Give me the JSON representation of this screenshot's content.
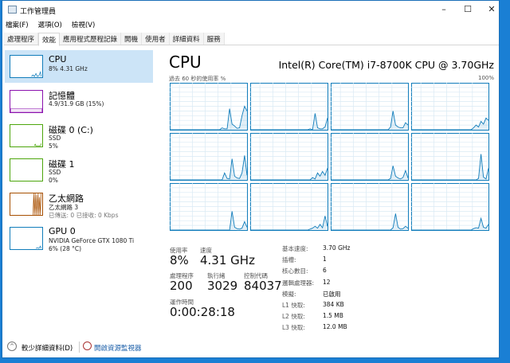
{
  "window": {
    "title": "工作管理員",
    "minimize": "–",
    "maximize": "☐",
    "close": "✕"
  },
  "menu": [
    "檔案(F)",
    "選項(O)",
    "檢視(V)"
  ],
  "tabs": [
    "處理程序",
    "效能",
    "應用程式歷程記錄",
    "開機",
    "使用者",
    "詳細資料",
    "服務"
  ],
  "active_tab": 1,
  "sidebar": [
    {
      "name": "CPU",
      "sub1": "8% 4.31 GHz",
      "color": "#117dbb"
    },
    {
      "name": "記憶體",
      "sub1": "4.9/31.9 GB (15%)",
      "color": "#8b12ae"
    },
    {
      "name": "磁碟 0 (C:)",
      "sub1": "SSD",
      "sub2": "5%",
      "color": "#4da60c"
    },
    {
      "name": "磁碟 1",
      "sub1": "SSD",
      "sub2": "0%",
      "color": "#4da60c"
    },
    {
      "name": "乙太網路",
      "sub1": "乙太網路 3",
      "sub2": "已傳送: 0 已接收: 0 Kbps",
      "color": "#a74f01"
    },
    {
      "name": "GPU 0",
      "sub1": "NVIDIA GeForce GTX 1080 Ti",
      "sub2": "6% (28 °C)",
      "color": "#117dbb"
    }
  ],
  "main": {
    "title": "CPU",
    "model": "Intel(R) Core(TM) i7-8700K CPU @ 3.70GHz",
    "graph_label": "過去 60 秒的使用率 %",
    "graph_max": "100%",
    "stats": {
      "usage_label": "使用率",
      "usage": "8%",
      "speed_label": "速度",
      "speed": "4.31 GHz",
      "proc_label": "處理程序",
      "proc": "200",
      "threads_label": "執行緒",
      "threads": "3029",
      "handles_label": "控制代碼",
      "handles": "84037",
      "uptime_label": "運作時間",
      "uptime": "0:00:28:18"
    },
    "specs": [
      {
        "k": "基本速度:",
        "v": "3.70 GHz"
      },
      {
        "k": "插槽:",
        "v": "1"
      },
      {
        "k": "核心數目:",
        "v": "6"
      },
      {
        "k": "邏輯處理器:",
        "v": "12"
      },
      {
        "k": "模擬:",
        "v": "已啟用"
      },
      {
        "k": "L1 快取:",
        "v": "384 KB"
      },
      {
        "k": "L2 快取:",
        "v": "1.5 MB"
      },
      {
        "k": "L3 快取:",
        "v": "12.0 MB"
      }
    ],
    "core_usage": [
      [
        0,
        0,
        0,
        0,
        0,
        0,
        0,
        0,
        0,
        0,
        0,
        0,
        0,
        0,
        0,
        0,
        0,
        0,
        0,
        0,
        0,
        4,
        2,
        2,
        45,
        12,
        8,
        3,
        4,
        30,
        50,
        40
      ],
      [
        0,
        0,
        0,
        0,
        0,
        0,
        0,
        0,
        0,
        0,
        0,
        0,
        0,
        0,
        0,
        0,
        0,
        0,
        0,
        0,
        0,
        0,
        0,
        0,
        2,
        0,
        35,
        4,
        2,
        2,
        6,
        25
      ],
      [
        0,
        0,
        0,
        0,
        0,
        0,
        0,
        0,
        0,
        0,
        0,
        0,
        0,
        0,
        0,
        0,
        0,
        0,
        0,
        0,
        0,
        0,
        0,
        0,
        6,
        40,
        10,
        6,
        4,
        4,
        15,
        10
      ],
      [
        0,
        0,
        0,
        0,
        0,
        0,
        0,
        0,
        0,
        0,
        0,
        0,
        0,
        0,
        0,
        0,
        0,
        0,
        0,
        0,
        0,
        0,
        0,
        0,
        0,
        4,
        10,
        6,
        18,
        12,
        25,
        20
      ],
      [
        0,
        0,
        0,
        0,
        0,
        0,
        0,
        0,
        0,
        0,
        0,
        0,
        0,
        0,
        0,
        0,
        0,
        0,
        0,
        0,
        0,
        0,
        15,
        3,
        2,
        45,
        8,
        4,
        3,
        15,
        52,
        10
      ],
      [
        0,
        0,
        0,
        0,
        0,
        0,
        0,
        0,
        0,
        0,
        0,
        0,
        0,
        0,
        0,
        0,
        0,
        0,
        0,
        0,
        0,
        0,
        0,
        0,
        0,
        5,
        2,
        15,
        8,
        18,
        10,
        25
      ],
      [
        0,
        0,
        0,
        0,
        0,
        0,
        0,
        0,
        0,
        0,
        0,
        0,
        0,
        0,
        0,
        0,
        0,
        0,
        0,
        0,
        0,
        0,
        0,
        0,
        3,
        30,
        8,
        4,
        2,
        5,
        20,
        4
      ],
      [
        0,
        0,
        0,
        0,
        0,
        0,
        0,
        0,
        0,
        0,
        0,
        0,
        0,
        0,
        0,
        0,
        0,
        0,
        0,
        0,
        0,
        0,
        0,
        0,
        0,
        0,
        0,
        3,
        55,
        6,
        2,
        25
      ],
      [
        0,
        0,
        0,
        0,
        0,
        0,
        0,
        0,
        0,
        0,
        0,
        0,
        0,
        0,
        0,
        0,
        0,
        0,
        0,
        0,
        0,
        0,
        0,
        0,
        0,
        40,
        6,
        3,
        2,
        4,
        18,
        6
      ],
      [
        0,
        0,
        0,
        0,
        0,
        0,
        0,
        0,
        0,
        0,
        0,
        0,
        0,
        0,
        0,
        0,
        0,
        0,
        0,
        0,
        0,
        0,
        0,
        0,
        2,
        4,
        8,
        4,
        12,
        5,
        30,
        8
      ],
      [
        0,
        0,
        0,
        0,
        0,
        0,
        0,
        0,
        0,
        0,
        0,
        0,
        0,
        0,
        0,
        0,
        0,
        0,
        0,
        0,
        0,
        0,
        0,
        0,
        0,
        5,
        35,
        6,
        2,
        3,
        8,
        4
      ],
      [
        0,
        0,
        0,
        0,
        0,
        0,
        0,
        0,
        0,
        0,
        0,
        0,
        0,
        0,
        0,
        0,
        0,
        0,
        0,
        0,
        0,
        0,
        0,
        0,
        0,
        3,
        5,
        4,
        25,
        6,
        4,
        12
      ]
    ]
  },
  "footer": {
    "fewer_details": "較少詳細資料(D)",
    "open_monitor": "開啟資源監視器"
  }
}
